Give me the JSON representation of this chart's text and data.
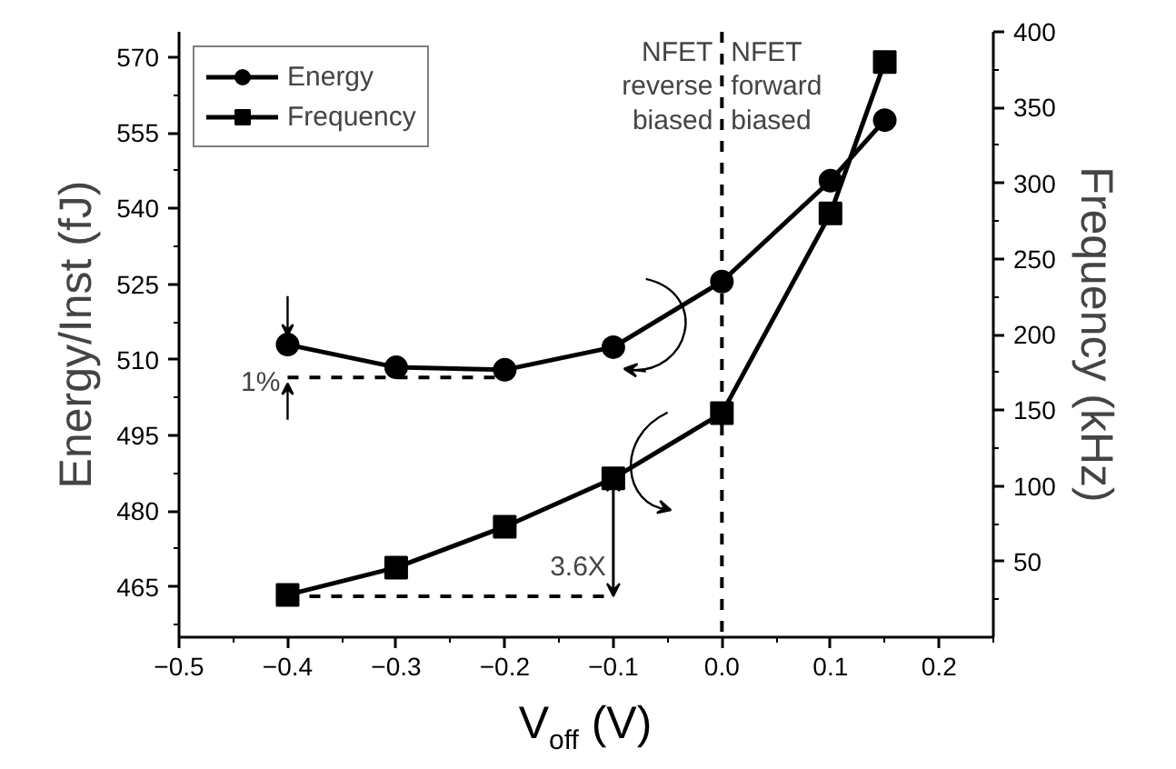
{
  "chart_data": {
    "type": "line",
    "xlabel": "V$_{off}$ (V)",
    "ylabel": "Energy/Inst (fJ)",
    "y2label": "Frequency (kHz)",
    "x": [
      -0.4,
      -0.3,
      -0.2,
      -0.1,
      0.0,
      0.1,
      0.15
    ],
    "series": [
      {
        "name": "Energy",
        "color": "#000000",
        "marker": "circle",
        "values": [
          513,
          508.5,
          508,
          512.5,
          525.5,
          545.5,
          557.5
        ]
      },
      {
        "name": "Frequency",
        "color": "#000000",
        "marker": "square",
        "axis": "y2",
        "values": [
          28,
          46,
          73,
          105,
          148,
          280,
          380
        ]
      },
      {
        "type": "line",
        "color": "#000000",
        "marker": "none",
        "line_style": "dashed",
        "x": [
          -0.4,
          -0.2
        ],
        "values": [
          506.5,
          506.5
        ]
      },
      {
        "type": "line",
        "color": "#000000",
        "marker": "none",
        "line_style": "dashed",
        "axis": "y2",
        "x": [
          -0.4,
          -0.1
        ],
        "values": [
          27,
          27
        ]
      }
    ],
    "xlim": [
      -0.5,
      0.25
    ],
    "xticks": [
      -0.5,
      -0.4,
      -0.3,
      -0.2,
      -0.1,
      {
        "value": 0.0,
        "label": "0.0"
      },
      0.1,
      0.2
    ],
    "ylim": [
      455,
      575
    ],
    "yticks": [
      465,
      480,
      495,
      510,
      525,
      540,
      555,
      570
    ],
    "y2lim": [
      0,
      400
    ],
    "y2ticks": [
      50,
      100,
      150,
      200,
      250,
      300,
      350,
      400
    ],
    "ref_lines": [
      {
        "axis": "x",
        "value": 0,
        "line_style": "dashed",
        "color": "#000000"
      }
    ],
    "annotations": [
      "NFET\nreverse\nbiased",
      "NFET\nforward\nbiased",
      {
        "text": "1%",
        "x": -0.4,
        "y": 506.5
      },
      {
        "text": "3.6X",
        "x": -0.1,
        "y": 463
      }
    ],
    "legend": "top left",
    "grid": false,
    "line_style": "solid"
  }
}
